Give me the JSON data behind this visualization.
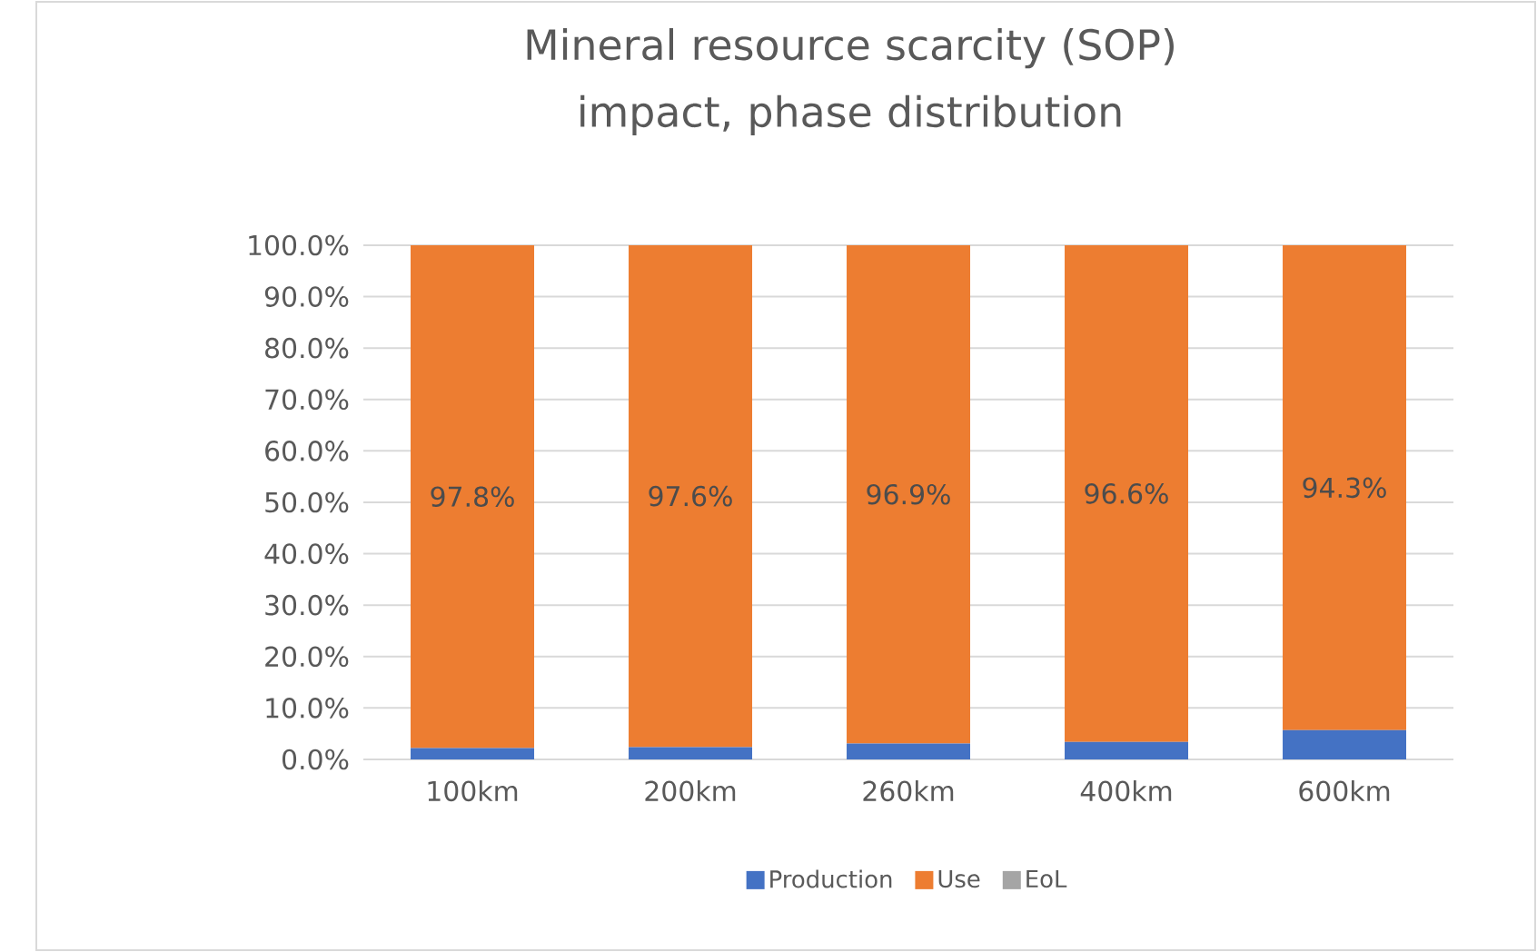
{
  "chart_data": {
    "type": "bar",
    "title": "Mineral resource scarcity (SOP) impact, phase distribution",
    "categories": [
      "100km",
      "200km",
      "260km",
      "400km",
      "600km"
    ],
    "series": [
      {
        "name": "Production",
        "color": "#4472c4",
        "values": [
          2.2,
          2.4,
          3.1,
          3.4,
          5.7
        ]
      },
      {
        "name": "Use",
        "color": "#ed7d31",
        "values": [
          97.8,
          97.6,
          96.9,
          96.6,
          94.3
        ],
        "value_labels": [
          "97.8%",
          "97.6%",
          "96.9%",
          "96.6%",
          "94.3%"
        ]
      },
      {
        "name": "EoL",
        "color": "#a5a5a5",
        "values": [
          0,
          0,
          0,
          0,
          0
        ]
      }
    ],
    "stacked": true,
    "ylim": [
      0,
      100
    ],
    "yticks": [
      {
        "value": 0,
        "label": "0.0%"
      },
      {
        "value": 10,
        "label": "10.0%"
      },
      {
        "value": 20,
        "label": "20.0%"
      },
      {
        "value": 30,
        "label": "30.0%"
      },
      {
        "value": 40,
        "label": "40.0%"
      },
      {
        "value": 50,
        "label": "50.0%"
      },
      {
        "value": 60,
        "label": "60.0%"
      },
      {
        "value": 70,
        "label": "70.0%"
      },
      {
        "value": 80,
        "label": "80.0%"
      },
      {
        "value": 90,
        "label": "90.0%"
      },
      {
        "value": 100,
        "label": "100.0%"
      }
    ],
    "grid": "y",
    "legend": "bottom"
  }
}
